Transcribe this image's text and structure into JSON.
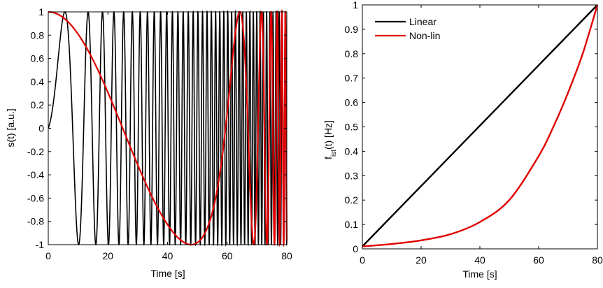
{
  "chart_data": [
    {
      "type": "line",
      "xlabel": "Time [s]",
      "ylabel": "s(t) [a.u.]",
      "xlim": [
        0,
        80
      ],
      "ylim": [
        -1,
        1
      ],
      "xticks": [
        "0",
        "20",
        "40",
        "60",
        "80"
      ],
      "yticks": [
        "-1",
        "-0.8",
        "-0.6",
        "-0.4",
        "-0.2",
        "0",
        "0.2",
        "0.4",
        "0.6",
        "0.8",
        "1"
      ],
      "grid": false,
      "series": [
        {
          "color": "#000000",
          "function": "sin(2*pi*f0*t + pi*k*t^2)",
          "f0": 0.01,
          "k": 0.0125
        },
        {
          "color": "#e00000",
          "function": "cos(2*pi*integral(f(t)))",
          "f0": 0.01,
          "f_end": 1.0,
          "t_end": 80,
          "f_curve": "exponential",
          "f_exponent_scale": 14.0
        }
      ]
    },
    {
      "type": "line",
      "xlabel": "Time [s]",
      "ylabel": "fist(t) [Hz]",
      "ylabel_main": "f",
      "ylabel_sub": "ist",
      "ylabel_rest": "(t)  [Hz]",
      "xlim": [
        0,
        80
      ],
      "ylim": [
        0,
        1
      ],
      "xticks": [
        "0",
        "20",
        "40",
        "60",
        "80"
      ],
      "yticks": [
        "0",
        "0.1",
        "0.2",
        "0.3",
        "0.4",
        "0.5",
        "0.6",
        "0.7",
        "0.8",
        "0.9",
        "1"
      ],
      "grid": false,
      "legend_position": "top-left",
      "series": [
        {
          "name": "Linear",
          "color": "#000000",
          "x": [
            0,
            80
          ],
          "y": [
            0.01,
            1.0
          ]
        },
        {
          "name": "Non-lin",
          "color": "#e00000",
          "x": [
            0,
            10,
            20,
            30,
            40,
            50,
            60,
            65,
            70,
            75,
            80
          ],
          "y": [
            0.01,
            0.02,
            0.035,
            0.06,
            0.11,
            0.2,
            0.38,
            0.5,
            0.64,
            0.8,
            1.0
          ]
        }
      ]
    }
  ]
}
